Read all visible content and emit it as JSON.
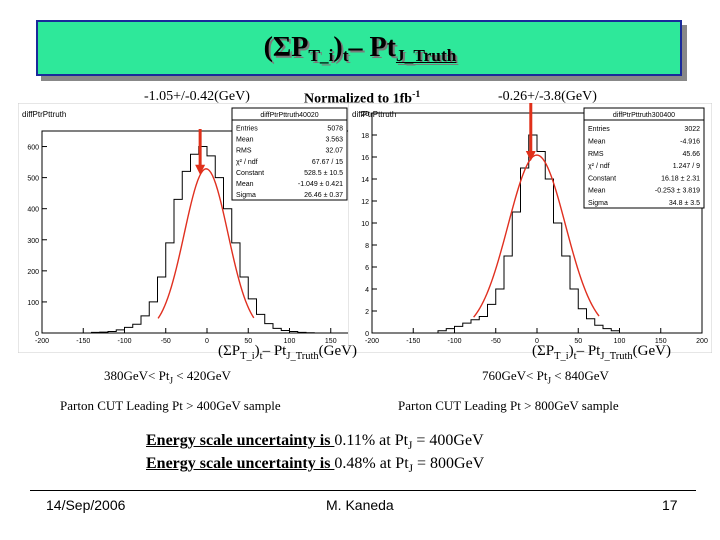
{
  "slide": {
    "title_main": "(ΣP",
    "title_sub1": "T_i",
    "title_mid": ")",
    "title_sub2": "t",
    "title_dash": "– Pt",
    "title_sub3": "J_Truth",
    "left_result": "-1.05+/-0.42(GeV)",
    "normalized_prefix": "Normalized to 1fb",
    "normalized_sup": "-1",
    "right_result": "-0.26+/-3.8(GeV)",
    "axis_title_a": "(ΣP",
    "axis_title_b": "T_i",
    "axis_title_c": ")",
    "axis_title_d": "t",
    "axis_title_e": "– Pt",
    "axis_title_f": "J_Truth",
    "axis_title_g": "(GeV)",
    "left_range_a": "380GeV< Pt",
    "left_range_b": "J",
    "left_range_c": " < 420GeV",
    "right_range_a": "760GeV< Pt",
    "right_range_b": "J",
    "right_range_c": " < 840GeV",
    "left_cut": "Parton CUT  Leading Pt > 400GeV sample",
    "right_cut": "Parton CUT  Leading Pt > 800GeV sample",
    "es1_a": "Energy scale uncertainty is ",
    "es1_b": "0.11%",
    "es1_c": " at Pt",
    "es1_d": "J",
    "es1_e": " = 400GeV",
    "es2_a": "Energy scale uncertainty is ",
    "es2_b": "0.48%",
    "es2_c": " at Pt",
    "es2_d": "J",
    "es2_e": " = 800GeV",
    "footer_date": "14/Sep/2006",
    "footer_author": "M. Kaneda",
    "footer_page": "17"
  },
  "colors": {
    "title_bg": "#2ee89a",
    "title_border": "#1a2a9a",
    "arrow": "#e0301a",
    "fit": "#e03020",
    "stats_accent": "#0000cc"
  },
  "chart_data": [
    {
      "type": "bar",
      "name_label": "diffPtrPttruth",
      "xlim": [
        -200,
        200
      ],
      "ylim": [
        0,
        650
      ],
      "xticks": [
        "-200",
        "-150",
        "-100",
        "-50",
        "0",
        "50",
        "100",
        "150",
        "200"
      ],
      "yticks": [
        "0",
        "100",
        "200",
        "300",
        "400",
        "500",
        "600"
      ],
      "bin_width": 10,
      "bin_centers": [
        -195,
        -185,
        -175,
        -165,
        -155,
        -145,
        -135,
        -125,
        -115,
        -105,
        -95,
        -85,
        -75,
        -65,
        -55,
        -45,
        -35,
        -25,
        -15,
        -5,
        5,
        15,
        25,
        35,
        45,
        55,
        65,
        75,
        85,
        95,
        105,
        115,
        125,
        135,
        145,
        155,
        165,
        175,
        185,
        195
      ],
      "counts": [
        0,
        0,
        0,
        0,
        0,
        0,
        2,
        3,
        5,
        10,
        18,
        28,
        55,
        100,
        180,
        290,
        430,
        520,
        575,
        600,
        570,
        500,
        400,
        290,
        180,
        110,
        60,
        30,
        15,
        8,
        5,
        2,
        1,
        0,
        0,
        0,
        0,
        0,
        0,
        0
      ],
      "fit": {
        "type": "gaussian",
        "mean": -1.049,
        "sigma": 26.46,
        "constant": 528.5
      },
      "stats_title": "diffPtrPttruth40020",
      "stats": [
        [
          "Entries",
          "5078"
        ],
        [
          "Mean",
          "3.563"
        ],
        [
          "RMS",
          "32.07"
        ],
        [
          "χ² / ndf",
          "67.67 / 15"
        ],
        [
          "Constant",
          "528.5 ± 10.5"
        ],
        [
          "Mean",
          "-1.049 ± 0.421"
        ],
        [
          "Sigma",
          "26.46 ± 0.37"
        ]
      ]
    },
    {
      "type": "bar",
      "name_label": "diffPtrPttruth",
      "xlim": [
        -200,
        200
      ],
      "ylim": [
        0,
        20
      ],
      "xticks": [
        "-200",
        "-150",
        "-100",
        "-50",
        "0",
        "50",
        "100",
        "150",
        "200"
      ],
      "yticks": [
        "0",
        "2",
        "4",
        "6",
        "8",
        "10",
        "12",
        "14",
        "16",
        "18",
        "20"
      ],
      "bin_width": 10,
      "bin_centers": [
        -195,
        -185,
        -175,
        -165,
        -155,
        -145,
        -135,
        -125,
        -115,
        -105,
        -95,
        -85,
        -75,
        -65,
        -55,
        -45,
        -35,
        -25,
        -15,
        -5,
        5,
        15,
        25,
        35,
        45,
        55,
        65,
        75,
        85,
        95,
        105,
        115,
        125,
        135,
        145,
        155,
        165,
        175,
        185,
        195
      ],
      "counts": [
        0,
        0,
        0,
        0,
        0,
        0,
        0,
        0,
        0.2,
        0.4,
        0.6,
        0.9,
        1.2,
        1.5,
        2.6,
        4,
        7,
        11,
        15,
        18,
        16.5,
        14,
        10,
        7,
        4,
        2.2,
        1.3,
        0.7,
        0.4,
        0.2,
        0,
        0,
        0,
        0,
        0,
        0,
        0,
        0,
        0,
        0
      ],
      "fit": {
        "type": "gaussian",
        "mean": -0.253,
        "sigma": 34.8,
        "constant": 16.18
      },
      "stats_title": "diffPtrPttruth300400",
      "stats": [
        [
          "Entries",
          "3022"
        ],
        [
          "Mean",
          "-4.916"
        ],
        [
          "RMS",
          "45.66"
        ],
        [
          "χ² / ndf",
          "1.247 / 9"
        ],
        [
          "Constant",
          "16.18 ± 2.31"
        ],
        [
          "Mean",
          "-0.253 ± 3.819"
        ],
        [
          "Sigma",
          "34.8 ± 3.5"
        ]
      ]
    }
  ]
}
